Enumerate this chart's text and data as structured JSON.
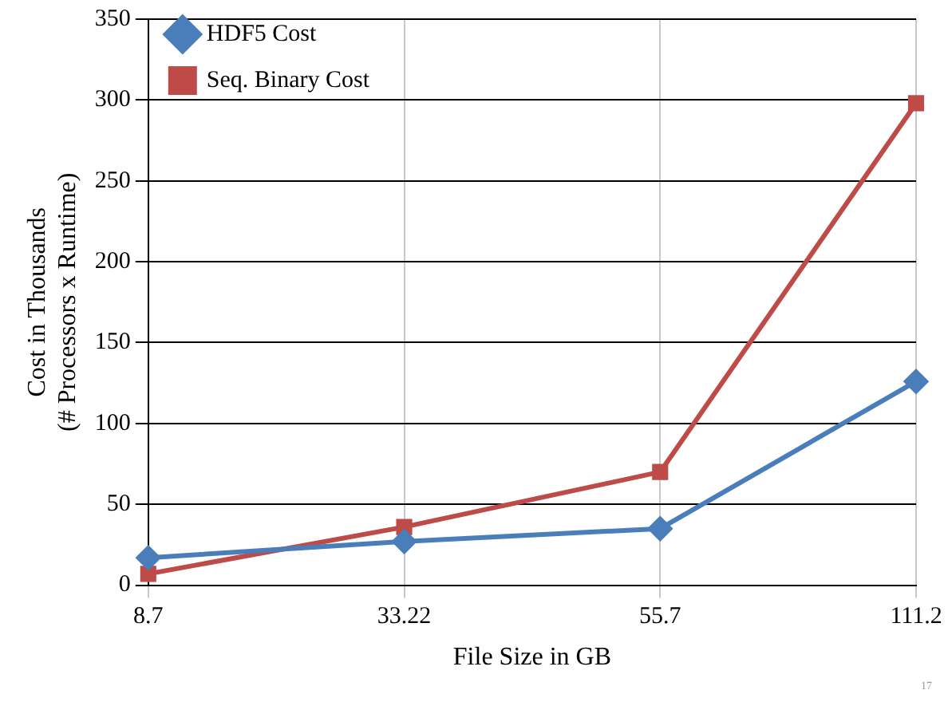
{
  "chart_data": {
    "type": "line",
    "xlabel": "File Size in GB",
    "ylabel": "Cost in Thousands\n(# Processors x Runtime)",
    "categories": [
      "8.7",
      "33.22",
      "55.7",
      "111.2"
    ],
    "series": [
      {
        "name": "HDF5 Cost",
        "color": "#4a7ebb",
        "values": [
          17,
          27,
          35,
          126
        ],
        "marker": "diamond"
      },
      {
        "name": "Seq. Binary Cost",
        "color": "#be4b48",
        "values": [
          7,
          36,
          70,
          298
        ],
        "marker": "square"
      }
    ],
    "ylim": [
      0,
      350
    ],
    "yticks": [
      0,
      50,
      100,
      150,
      200,
      250,
      300,
      350
    ],
    "grid": true,
    "legend": "top left",
    "line_style": "solid",
    "annotations": [
      {
        "text": "17"
      }
    ]
  }
}
